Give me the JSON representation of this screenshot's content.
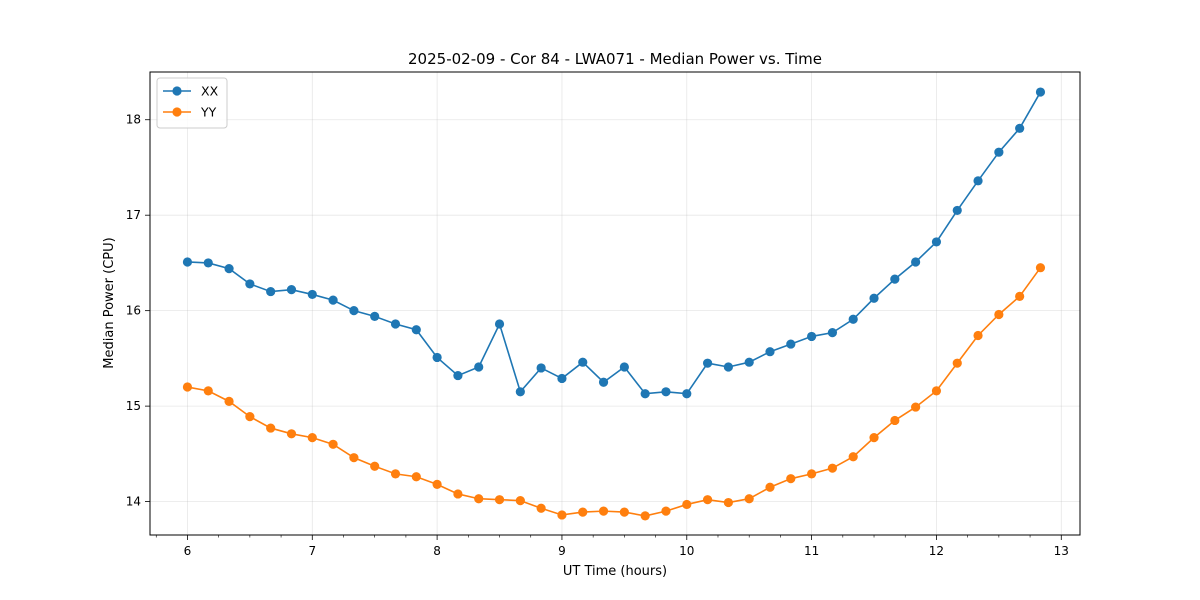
{
  "chart_data": {
    "type": "line",
    "title": "2025-02-09 - Cor 84 - LWA071 - Median Power vs. Time",
    "xlabel": "UT Time (hours)",
    "ylabel": "Median Power (CPU)",
    "xlim": [
      5.7,
      13.15
    ],
    "ylim": [
      13.65,
      18.5
    ],
    "xticks": [
      6,
      7,
      8,
      9,
      10,
      11,
      12,
      13
    ],
    "yticks": [
      14,
      15,
      16,
      17,
      18
    ],
    "grid": true,
    "legend_position": "top-left",
    "x": [
      6.0,
      6.1667,
      6.3333,
      6.5,
      6.6667,
      6.8333,
      7.0,
      7.1667,
      7.3333,
      7.5,
      7.6667,
      7.8333,
      8.0,
      8.1667,
      8.3333,
      8.5,
      8.6667,
      8.8333,
      9.0,
      9.1667,
      9.3333,
      9.5,
      9.6667,
      9.8333,
      10.0,
      10.1667,
      10.3333,
      10.5,
      10.6667,
      10.8333,
      11.0,
      11.1667,
      11.3333,
      11.5,
      11.6667,
      11.8333,
      12.0,
      12.1667,
      12.3333,
      12.5,
      12.6667,
      12.8333
    ],
    "series": [
      {
        "name": "XX",
        "color": "#1f77b4",
        "values": [
          16.51,
          16.5,
          16.44,
          16.28,
          16.2,
          16.22,
          16.17,
          16.11,
          16.0,
          15.94,
          15.86,
          15.8,
          15.51,
          15.32,
          15.41,
          15.86,
          15.15,
          15.4,
          15.29,
          15.46,
          15.25,
          15.41,
          15.13,
          15.15,
          15.13,
          15.45,
          15.41,
          15.46,
          15.57,
          15.65,
          15.73,
          15.77,
          15.91,
          16.13,
          16.33,
          16.51,
          16.72,
          17.05,
          17.36,
          17.66,
          17.91,
          18.29
        ]
      },
      {
        "name": "YY",
        "color": "#ff7f0e",
        "values": [
          15.2,
          15.16,
          15.05,
          14.89,
          14.77,
          14.71,
          14.67,
          14.6,
          14.46,
          14.37,
          14.29,
          14.26,
          14.18,
          14.08,
          14.03,
          14.02,
          14.01,
          13.93,
          13.86,
          13.89,
          13.9,
          13.89,
          13.85,
          13.9,
          13.97,
          14.02,
          13.99,
          14.03,
          14.15,
          14.24,
          14.29,
          14.35,
          14.47,
          14.67,
          14.85,
          14.99,
          15.16,
          15.45,
          15.74,
          15.96,
          16.15,
          16.45
        ]
      }
    ]
  }
}
